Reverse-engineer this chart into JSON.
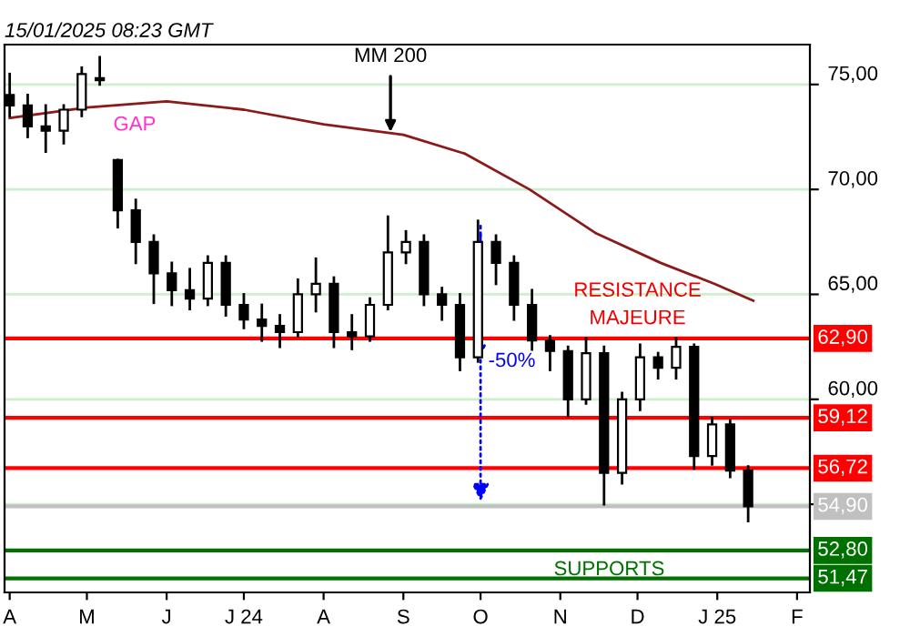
{
  "chart_data": {
    "type": "candlestick",
    "title": "15/01/2025 08:23 GMT",
    "x": [
      "2024-04-01",
      "2024-04-08",
      "2024-04-15",
      "2024-04-22",
      "2024-04-29",
      "2024-05-06",
      "2024-05-13",
      "2024-05-20",
      "2024-05-27",
      "2024-06-03",
      "2024-06-10",
      "2024-06-17",
      "2024-06-24",
      "2024-07-01",
      "2024-07-08",
      "2024-07-15",
      "2024-07-22",
      "2024-07-29",
      "2024-08-05",
      "2024-08-12",
      "2024-08-19",
      "2024-08-26",
      "2024-09-02",
      "2024-09-09",
      "2024-09-16",
      "2024-09-23",
      "2024-09-30",
      "2024-10-07",
      "2024-10-14",
      "2024-10-21",
      "2024-10-28",
      "2024-11-04",
      "2024-11-11",
      "2024-11-18",
      "2024-11-25",
      "2024-12-02",
      "2024-12-09",
      "2024-12-16",
      "2024-12-23",
      "2024-12-30",
      "2025-01-06",
      "2025-01-13"
    ],
    "ohlc": [
      [
        74.5,
        75.5,
        73.5,
        74
      ],
      [
        74,
        74.5,
        72.5,
        73
      ],
      [
        73,
        74,
        71.8,
        72.8
      ],
      [
        72.8,
        74,
        72.2,
        73.8
      ],
      [
        73.8,
        75.8,
        73.5,
        75.5
      ],
      [
        75.3,
        76.3,
        75,
        75.2
      ],
      [
        71.4,
        71.4,
        68.2,
        69
      ],
      [
        69,
        69.5,
        66.5,
        67.5
      ],
      [
        67.5,
        67.8,
        64.6,
        66
      ],
      [
        66,
        66.5,
        64.5,
        65.2
      ],
      [
        65.2,
        66.2,
        64.3,
        64.8
      ],
      [
        64.8,
        66.8,
        64.5,
        66.5
      ],
      [
        66.5,
        66.8,
        64,
        64.5
      ],
      [
        64.5,
        65,
        63.4,
        63.8
      ],
      [
        63.8,
        64.5,
        62.8,
        63.5
      ],
      [
        63.5,
        64,
        62.5,
        63.2
      ],
      [
        63.2,
        65.7,
        63,
        65
      ],
      [
        65,
        66.7,
        64.2,
        65.5
      ],
      [
        65.5,
        65.8,
        62.5,
        63.2
      ],
      [
        63.2,
        64,
        62.4,
        63
      ],
      [
        63,
        64.8,
        62.8,
        64.5
      ],
      [
        64.5,
        68.7,
        64.3,
        67
      ],
      [
        67,
        68,
        66.5,
        67.5
      ],
      [
        67.5,
        67.8,
        64.5,
        65
      ],
      [
        65,
        65.3,
        63.8,
        64.5
      ],
      [
        64.5,
        65,
        61.4,
        62
      ],
      [
        62,
        68.5,
        61.8,
        67.5
      ],
      [
        67.5,
        67.8,
        65.5,
        66.5
      ],
      [
        66.5,
        66.8,
        63.8,
        64.5
      ],
      [
        64.5,
        65.2,
        62.2,
        62.8
      ],
      [
        62.8,
        63,
        61.4,
        62.3
      ],
      [
        62.3,
        62.5,
        59.2,
        60
      ],
      [
        60,
        62.9,
        59.8,
        62.2
      ],
      [
        62.2,
        62.5,
        55,
        56.5
      ],
      [
        56.5,
        60.3,
        56,
        60
      ],
      [
        60,
        62.6,
        59.5,
        62
      ],
      [
        62,
        62.2,
        61,
        61.5
      ],
      [
        61.5,
        62.9,
        61,
        62.5
      ],
      [
        62.5,
        62.6,
        56.7,
        57.3
      ],
      [
        57.3,
        59.1,
        56.9,
        58.8
      ],
      [
        58.8,
        59,
        56.3,
        56.6
      ],
      [
        56.6,
        56.8,
        54.2,
        54.9
      ]
    ],
    "color": "#000000",
    "series": [
      {
        "type": "line",
        "color": "#8b1a1a",
        "x": [
          "2024-04-01",
          "2024-05-01",
          "2024-06-01",
          "2024-07-01",
          "2024-08-01",
          "2024-09-01",
          "2024-09-25",
          "2024-10-20",
          "2024-11-15",
          "2024-12-10",
          "2024-12-31",
          "2025-01-15"
        ],
        "values": [
          73.4,
          73.9,
          74.2,
          73.8,
          73.1,
          72.6,
          71.7,
          70.0,
          67.9,
          66.5,
          65.5,
          64.7
        ]
      }
    ],
    "xlim": [
      "2024-03-30",
      "2025-02-06"
    ],
    "xticks": [
      {
        "value": "2024-04-01",
        "label": "A"
      },
      {
        "value": "2024-05-01",
        "label": "M"
      },
      {
        "value": "2024-06-01",
        "label": "J"
      },
      {
        "value": "2024-07-01",
        "label": "J 24"
      },
      {
        "value": "2024-08-01",
        "label": "A"
      },
      {
        "value": "2024-09-01",
        "label": "S"
      },
      {
        "value": "2024-10-01",
        "label": "O"
      },
      {
        "value": "2024-11-01",
        "label": "N"
      },
      {
        "value": "2024-12-01",
        "label": "D"
      },
      {
        "value": "2025-01-01",
        "label": "J 25"
      },
      {
        "value": "2025-02-01",
        "label": "F"
      }
    ],
    "ylim": [
      50.8,
      76.9
    ],
    "yticks": [
      {
        "value": 55,
        "label": null
      },
      {
        "value": 60,
        "label": "60,00"
      },
      {
        "value": 65,
        "label": "65,00"
      },
      {
        "value": 70,
        "label": "70,00"
      },
      {
        "value": 75,
        "label": "75,00"
      }
    ],
    "grid": "y",
    "tick_labels": "x",
    "ref_lines": [
      {
        "axis": "y",
        "value": 62.9,
        "label": "62,90",
        "color": "#ff0000"
      },
      {
        "axis": "y",
        "value": 59.12,
        "label": "59,12",
        "color": "#ff0000"
      },
      {
        "axis": "y",
        "value": 56.72,
        "label": "56,72",
        "color": "#ff0000"
      },
      {
        "axis": "y",
        "value": 54.9,
        "label": "54,90",
        "color": "#c0c0c0"
      },
      {
        "axis": "y",
        "value": 52.8,
        "label": "52,80",
        "color": "#007000"
      },
      {
        "axis": "y",
        "value": 51.47,
        "label": "51,47",
        "color": "#007000"
      }
    ],
    "annotations": [
      "GAP",
      {
        "text": "MM 200",
        "x": "2024-08-27",
        "y": 72.5
      },
      {
        "text": "RESISTANCE\nMAJEURE",
        "x": "2024-12-01",
        "y": 62.9
      },
      {
        "text": "-50%",
        "x": "2024-10-01",
        "y": 61.8
      },
      {
        "text": "SUPPORTS",
        "x": "2024-11-20",
        "y": 52.8
      }
    ]
  }
}
